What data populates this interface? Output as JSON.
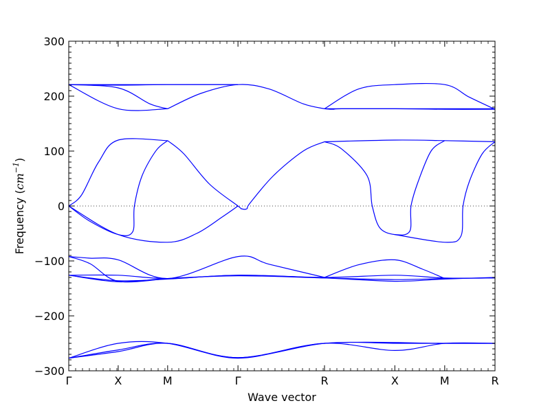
{
  "chart_data": {
    "type": "line",
    "xlabel": "Wave vector",
    "ylabel_prefix": "Frequency (",
    "ylabel_unit": "cm",
    "ylabel_exp": "−1",
    "ylabel_suffix": ")",
    "ylim": [
      -300,
      300
    ],
    "yticks": [
      -300,
      -200,
      -100,
      0,
      100,
      200,
      300
    ],
    "ytick_labels": [
      "−300",
      "−200",
      "−100",
      "0",
      "100",
      "200",
      "300"
    ],
    "xlim": [
      0,
      1
    ],
    "xticks": [
      {
        "x": 0.0,
        "label": "Γ"
      },
      {
        "x": 0.116,
        "label": "X"
      },
      {
        "x": 0.232,
        "label": "M"
      },
      {
        "x": 0.397,
        "label": "Γ"
      },
      {
        "x": 0.6,
        "label": "R"
      },
      {
        "x": 0.765,
        "label": "X"
      },
      {
        "x": 0.882,
        "label": "M"
      },
      {
        "x": 1.0,
        "label": "R"
      }
    ],
    "zero_line": {
      "style": "dotted",
      "y": 0
    },
    "grid": false,
    "line_color": "#0000ff",
    "series": [
      {
        "values": [
          [
            0,
            221
          ],
          [
            0.03,
            221
          ],
          [
            0.116,
            221
          ],
          [
            0.232,
            221
          ],
          [
            0.33,
            221
          ],
          [
            0.397,
            221
          ]
        ]
      },
      {
        "values": [
          [
            0,
            221
          ],
          [
            0.116,
            220
          ],
          [
            0.232,
            221
          ],
          [
            0.397,
            221
          ]
        ]
      },
      {
        "values": [
          [
            0,
            221
          ],
          [
            0.116,
            177
          ],
          [
            0.232,
            177
          ]
        ]
      },
      {
        "values": [
          [
            0,
            221
          ],
          [
            0.116,
            215
          ],
          [
            0.19,
            186
          ],
          [
            0.232,
            177
          ]
        ]
      },
      {
        "values": [
          [
            0.232,
            177
          ],
          [
            0.31,
            205
          ],
          [
            0.397,
            221
          ],
          [
            0.47,
            213
          ],
          [
            0.55,
            186
          ],
          [
            0.6,
            177
          ]
        ]
      },
      {
        "values": [
          [
            0.6,
            177
          ],
          [
            0.68,
            213
          ],
          [
            0.765,
            221
          ],
          [
            0.882,
            221
          ],
          [
            0.94,
            198
          ],
          [
            1.0,
            176
          ]
        ]
      },
      {
        "values": [
          [
            0.6,
            177
          ],
          [
            0.765,
            177
          ],
          [
            0.882,
            176
          ],
          [
            1.0,
            176
          ]
        ]
      },
      {
        "values": [
          [
            0.6,
            177
          ],
          [
            0.62,
            176
          ],
          [
            0.64,
            177
          ],
          [
            0.765,
            177
          ],
          [
            0.882,
            177
          ],
          [
            1.0,
            177
          ]
        ]
      },
      {
        "values": [
          [
            0,
            0
          ],
          [
            0.03,
            20
          ],
          [
            0.07,
            80
          ],
          [
            0.116,
            120
          ],
          [
            0.232,
            119
          ]
        ]
      },
      {
        "values": [
          [
            0,
            0
          ],
          [
            0.05,
            -28
          ],
          [
            0.116,
            -52
          ],
          [
            0.15,
            -47
          ],
          [
            0.154,
            0
          ],
          [
            0.172,
            55
          ],
          [
            0.205,
            101
          ],
          [
            0.232,
            119
          ]
        ]
      },
      {
        "values": [
          [
            0,
            0
          ],
          [
            0.116,
            -52
          ],
          [
            0.232,
            -66
          ],
          [
            0.3,
            -50
          ],
          [
            0.36,
            -20
          ],
          [
            0.397,
            0
          ]
        ]
      },
      {
        "values": [
          [
            0.232,
            119
          ],
          [
            0.27,
            95
          ],
          [
            0.33,
            40
          ],
          [
            0.397,
            0
          ],
          [
            0.405,
            -5
          ],
          [
            0.418,
            -5
          ],
          [
            0.425,
            5
          ],
          [
            0.48,
            55
          ],
          [
            0.55,
            100
          ],
          [
            0.6,
            117
          ]
        ]
      },
      {
        "values": [
          [
            0.6,
            117
          ],
          [
            0.64,
            104
          ],
          [
            0.7,
            55
          ],
          [
            0.712,
            0
          ],
          [
            0.73,
            -40
          ],
          [
            0.765,
            -52
          ],
          [
            0.8,
            -46
          ],
          [
            0.803,
            0
          ],
          [
            0.82,
            45
          ],
          [
            0.85,
            100
          ],
          [
            0.882,
            119
          ]
        ]
      },
      {
        "values": [
          [
            0.6,
            117
          ],
          [
            0.765,
            120
          ],
          [
            0.882,
            119
          ],
          [
            1.0,
            117
          ]
        ]
      },
      {
        "values": [
          [
            0.765,
            -52
          ],
          [
            0.882,
            -66
          ],
          [
            0.92,
            -55
          ],
          [
            0.925,
            0
          ],
          [
            0.94,
            45
          ],
          [
            0.97,
            95
          ],
          [
            1.0,
            117
          ]
        ]
      },
      {
        "values": [
          [
            0,
            -92
          ],
          [
            0.05,
            -95
          ],
          [
            0.116,
            -98
          ],
          [
            0.232,
            -132
          ],
          [
            0.397,
            -92
          ],
          [
            0.47,
            -106
          ],
          [
            0.6,
            -130
          ]
        ]
      },
      {
        "values": [
          [
            0,
            -92
          ],
          [
            0.05,
            -105
          ],
          [
            0.116,
            -137
          ],
          [
            0.232,
            -132
          ]
        ]
      },
      {
        "values": [
          [
            0,
            -126
          ],
          [
            0.116,
            -126
          ],
          [
            0.232,
            -132
          ],
          [
            0.397,
            -126
          ],
          [
            0.6,
            -130
          ],
          [
            0.765,
            -126
          ],
          [
            0.882,
            -131
          ],
          [
            1.0,
            -131
          ]
        ]
      },
      {
        "values": [
          [
            0,
            -126
          ],
          [
            0.116,
            -136
          ],
          [
            0.232,
            -133
          ],
          [
            0.397,
            -126
          ],
          [
            0.6,
            -131
          ],
          [
            0.765,
            -137
          ],
          [
            0.882,
            -133
          ],
          [
            1.0,
            -130
          ]
        ]
      },
      {
        "values": [
          [
            0,
            -126
          ],
          [
            0.116,
            -138
          ],
          [
            0.232,
            -132
          ],
          [
            0.397,
            -127
          ],
          [
            0.6,
            -131
          ],
          [
            0.765,
            -134
          ],
          [
            0.882,
            -132
          ],
          [
            1.0,
            -131
          ]
        ]
      },
      {
        "values": [
          [
            0.6,
            -130
          ],
          [
            0.68,
            -107
          ],
          [
            0.765,
            -98
          ],
          [
            0.83,
            -115
          ],
          [
            0.882,
            -132
          ]
        ]
      },
      {
        "values": [
          [
            0,
            -277
          ],
          [
            0.116,
            -262
          ],
          [
            0.232,
            -250
          ],
          [
            0.397,
            -276
          ],
          [
            0.6,
            -250
          ],
          [
            0.765,
            -263
          ],
          [
            0.882,
            -250
          ],
          [
            1.0,
            -250
          ]
        ]
      },
      {
        "values": [
          [
            0,
            -277
          ],
          [
            0.116,
            -250
          ],
          [
            0.232,
            -250
          ],
          [
            0.397,
            -276
          ],
          [
            0.6,
            -250
          ],
          [
            0.765,
            -250
          ],
          [
            0.882,
            -250
          ],
          [
            1.0,
            -250
          ]
        ]
      },
      {
        "values": [
          [
            0,
            -277
          ],
          [
            0.116,
            -265
          ],
          [
            0.232,
            -250
          ],
          [
            0.397,
            -277
          ],
          [
            0.6,
            -250
          ],
          [
            0.882,
            -250
          ],
          [
            1.0,
            -250
          ]
        ]
      }
    ]
  }
}
